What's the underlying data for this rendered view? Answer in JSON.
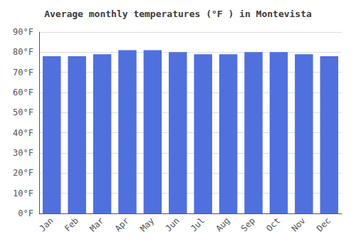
{
  "chart_data": {
    "type": "bar",
    "title": "Average monthly temperatures (°F ) in Montevista",
    "categories": [
      "Jan",
      "Feb",
      "Mar",
      "Apr",
      "May",
      "Jun",
      "Jul",
      "Aug",
      "Sep",
      "Oct",
      "Nov",
      "Dec"
    ],
    "values": [
      78,
      78,
      79,
      81,
      81,
      80,
      79,
      79,
      80,
      80,
      79,
      78
    ],
    "ylim": [
      0,
      90
    ],
    "yticks": [
      {
        "value": 0,
        "label": "0°F"
      },
      {
        "value": 10,
        "label": "10°F"
      },
      {
        "value": 20,
        "label": "20°F"
      },
      {
        "value": 30,
        "label": "30°F"
      },
      {
        "value": 40,
        "label": "40°F"
      },
      {
        "value": 50,
        "label": "50°F"
      },
      {
        "value": 60,
        "label": "60°F"
      },
      {
        "value": 70,
        "label": "70°F"
      },
      {
        "value": 80,
        "label": "80°F"
      },
      {
        "value": 90,
        "label": "90°F"
      }
    ],
    "grid": true
  }
}
